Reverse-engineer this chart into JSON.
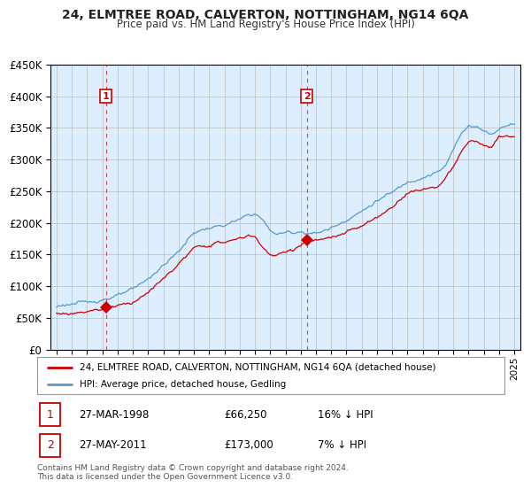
{
  "title": "24, ELMTREE ROAD, CALVERTON, NOTTINGHAM, NG14 6QA",
  "subtitle": "Price paid vs. HM Land Registry's House Price Index (HPI)",
  "legend_label_red": "24, ELMTREE ROAD, CALVERTON, NOTTINGHAM, NG14 6QA (detached house)",
  "legend_label_blue": "HPI: Average price, detached house, Gedling",
  "transaction1_date": "27-MAR-1998",
  "transaction1_price": "£66,250",
  "transaction1_hpi": "16% ↓ HPI",
  "transaction1_year": 1998.23,
  "transaction1_value": 66250,
  "transaction2_date": "27-MAY-2011",
  "transaction2_price": "£173,000",
  "transaction2_hpi": "7% ↓ HPI",
  "transaction2_year": 2011.4,
  "transaction2_value": 173000,
  "footer": "Contains HM Land Registry data © Crown copyright and database right 2024.\nThis data is licensed under the Open Government Licence v3.0.",
  "red_color": "#cc0000",
  "blue_color": "#5599cc",
  "dashed_line_color": "#cc0000",
  "background_color": "#ddeeff",
  "ylim": [
    0,
    450000
  ],
  "xlim_start": 1994.6,
  "xlim_end": 2025.4,
  "marker_box_color": "#cc0000"
}
